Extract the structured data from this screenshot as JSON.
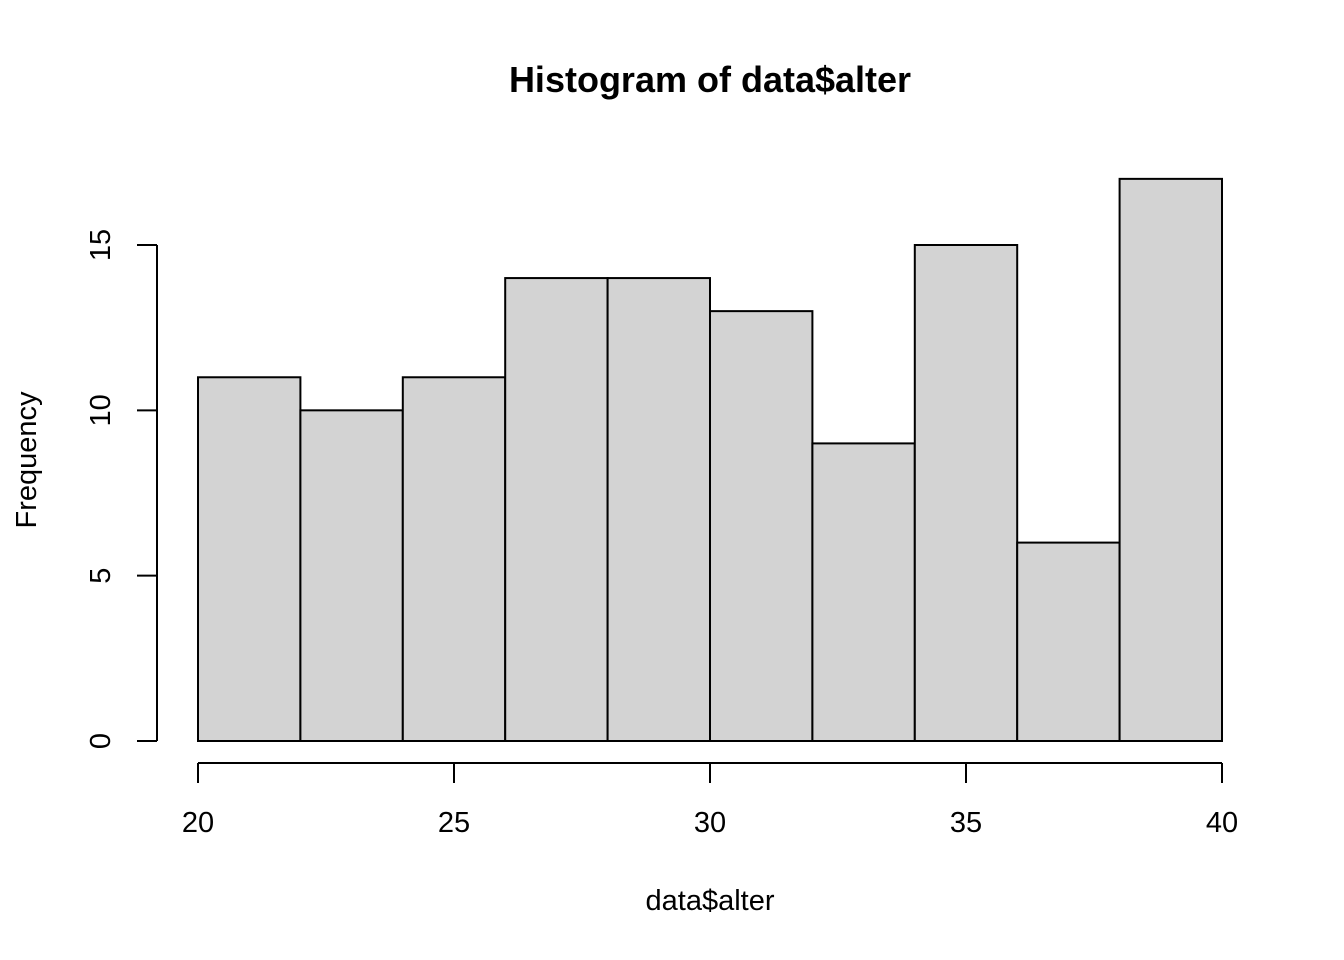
{
  "chart_data": {
    "type": "bar",
    "title": "Histogram of data$alter",
    "xlabel": "data$alter",
    "ylabel": "Frequency",
    "bins": [
      {
        "start": 20,
        "end": 22,
        "count": 11
      },
      {
        "start": 22,
        "end": 24,
        "count": 10
      },
      {
        "start": 24,
        "end": 26,
        "count": 11
      },
      {
        "start": 26,
        "end": 28,
        "count": 14
      },
      {
        "start": 28,
        "end": 30,
        "count": 14
      },
      {
        "start": 30,
        "end": 32,
        "count": 13
      },
      {
        "start": 32,
        "end": 34,
        "count": 9
      },
      {
        "start": 34,
        "end": 36,
        "count": 15
      },
      {
        "start": 36,
        "end": 38,
        "count": 6
      },
      {
        "start": 38,
        "end": 40,
        "count": 17
      }
    ],
    "xlim": [
      20,
      40
    ],
    "ylim": [
      0,
      15
    ],
    "x_ticks": [
      "20",
      "25",
      "30",
      "35",
      "40"
    ],
    "y_ticks": [
      "0",
      "5",
      "10",
      "15"
    ],
    "bar_color": "#d3d3d3",
    "edge_color": "#000000",
    "grid": false,
    "legend": "none"
  }
}
